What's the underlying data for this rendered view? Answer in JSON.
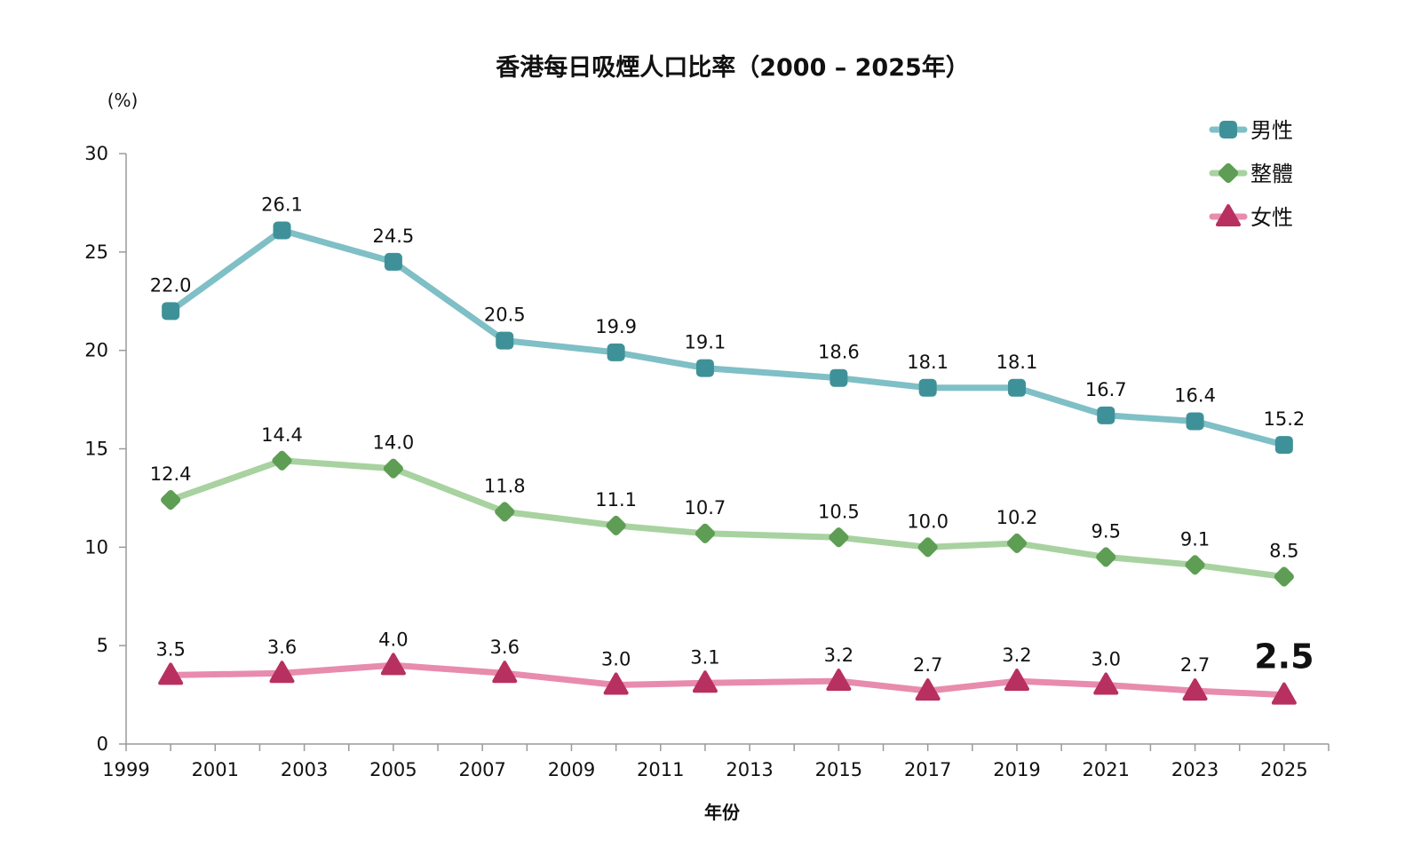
{
  "chart_data": {
    "type": "line",
    "title": "香港每日吸煙人口比率（2000 – 2025年）",
    "ylabel": "(%)",
    "xlabel": "年份",
    "xlim": [
      1999,
      2026
    ],
    "ylim": [
      0,
      30
    ],
    "x_ticks": [
      1999,
      2001,
      2003,
      2005,
      2007,
      2009,
      2011,
      2013,
      2015,
      2017,
      2019,
      2021,
      2023,
      2025
    ],
    "y_ticks": [
      0,
      5,
      10,
      15,
      20,
      25,
      30
    ],
    "x": [
      2000,
      2002.5,
      2005,
      2007.5,
      2010,
      2012,
      2015,
      2017,
      2019,
      2021,
      2023,
      2025
    ],
    "grid": false,
    "legend_position": "top-right",
    "series": [
      {
        "name": "男性",
        "color": "#7fbfc6",
        "marker_color": "#3f9199",
        "marker": "square",
        "values": [
          22.0,
          26.1,
          24.5,
          20.5,
          19.9,
          19.1,
          18.6,
          18.1,
          18.1,
          16.7,
          16.4,
          15.2
        ],
        "labels": [
          "22.0",
          "26.1",
          "24.5",
          "20.5",
          "19.9",
          "19.1",
          "18.6",
          "18.1",
          "18.1",
          "16.7",
          "16.4",
          "15.2"
        ]
      },
      {
        "name": "整體",
        "color": "#a8d2a0",
        "marker_color": "#5e9e54",
        "marker": "diamond",
        "values": [
          12.4,
          14.4,
          14.0,
          11.8,
          11.1,
          10.7,
          10.5,
          10.0,
          10.2,
          9.5,
          9.1,
          8.5
        ],
        "labels": [
          "12.4",
          "14.4",
          "14.0",
          "11.8",
          "11.1",
          "10.7",
          "10.5",
          "10.0",
          "10.2",
          "9.5",
          "9.1",
          "8.5"
        ]
      },
      {
        "name": "女性",
        "color": "#e88bad",
        "marker_color": "#b8305f",
        "marker": "triangle",
        "values": [
          3.5,
          3.6,
          4.0,
          3.6,
          3.0,
          3.1,
          3.2,
          2.7,
          3.2,
          3.0,
          2.7,
          2.5
        ],
        "labels": [
          "3.5",
          "3.6",
          "4.0",
          "3.6",
          "3.0",
          "3.1",
          "3.2",
          "2.7",
          "3.2",
          "3.0",
          "2.7",
          "2.5"
        ],
        "emphasized_label_index": 11
      }
    ]
  }
}
